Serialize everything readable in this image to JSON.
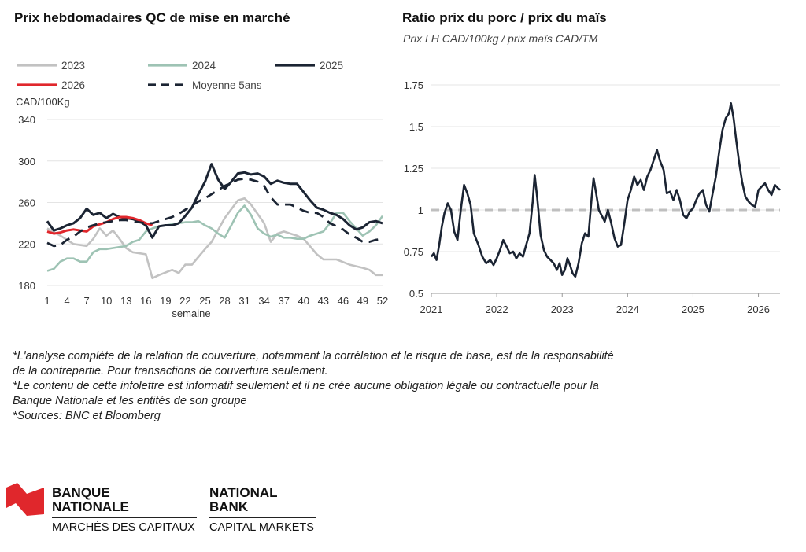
{
  "chart_data": [
    {
      "type": "line",
      "title": "Prix hebdomadaires QC de mise en marché",
      "ylabel": "CAD/100Kg",
      "xlabel": "semaine",
      "ylim": [
        180,
        340
      ],
      "yticks": [
        180,
        220,
        260,
        300,
        340
      ],
      "xlim": [
        1,
        52
      ],
      "xticks": [
        1,
        4,
        7,
        10,
        13,
        16,
        19,
        22,
        25,
        28,
        31,
        34,
        37,
        40,
        43,
        46,
        49,
        52
      ],
      "grid": true,
      "legend_position": "top",
      "series": [
        {
          "name": "2023",
          "color": "#c2c2c2",
          "dash": "solid",
          "x": [
            1,
            3,
            5,
            7,
            8,
            9,
            10,
            11,
            12,
            13,
            14,
            16,
            17,
            18,
            20,
            21,
            22,
            23,
            25,
            26,
            28,
            30,
            31,
            32,
            34,
            35,
            36,
            37,
            38,
            39,
            40,
            42,
            43,
            44,
            45,
            47,
            49,
            50,
            51,
            52
          ],
          "y": [
            235,
            228,
            220,
            218,
            225,
            235,
            228,
            233,
            225,
            216,
            212,
            210,
            187,
            190,
            195,
            192,
            200,
            200,
            215,
            222,
            245,
            262,
            264,
            258,
            240,
            222,
            230,
            232,
            230,
            228,
            225,
            210,
            205,
            205,
            205,
            200,
            197,
            195,
            190,
            190
          ]
        },
        {
          "name": "2024",
          "color": "#9ec3b4",
          "dash": "solid",
          "x": [
            1,
            2,
            3,
            4,
            5,
            6,
            7,
            8,
            9,
            10,
            11,
            12,
            13,
            14,
            15,
            16,
            17,
            18,
            19,
            20,
            21,
            22,
            23,
            24,
            25,
            26,
            27,
            28,
            29,
            30,
            31,
            32,
            33,
            34,
            35,
            36,
            37,
            38,
            39,
            40,
            41,
            42,
            43,
            44,
            45,
            46,
            47,
            48,
            49,
            50,
            51,
            52
          ],
          "y": [
            194,
            196,
            203,
            206,
            206,
            203,
            203,
            212,
            215,
            215,
            216,
            217,
            218,
            222,
            224,
            232,
            235,
            237,
            238,
            239,
            240,
            241,
            241,
            242,
            238,
            235,
            230,
            226,
            238,
            250,
            257,
            248,
            235,
            230,
            227,
            229,
            226,
            226,
            225,
            225,
            228,
            230,
            232,
            240,
            250,
            250,
            242,
            235,
            228,
            232,
            238,
            247
          ]
        },
        {
          "name": "2025",
          "color": "#1b2433",
          "dash": "solid",
          "x": [
            1,
            2,
            3,
            4,
            5,
            6,
            7,
            8,
            9,
            10,
            11,
            12,
            13,
            14,
            15,
            16,
            17,
            18,
            19,
            20,
            21,
            22,
            23,
            24,
            25,
            26,
            27,
            28,
            29,
            30,
            31,
            32,
            33,
            34,
            35,
            36,
            37,
            38,
            39,
            40,
            41,
            42,
            43,
            44,
            45,
            46,
            47,
            48,
            49,
            50,
            51,
            52
          ],
          "y": [
            242,
            233,
            235,
            238,
            240,
            245,
            254,
            248,
            250,
            245,
            249,
            246,
            245,
            244,
            242,
            238,
            226,
            237,
            238,
            238,
            240,
            247,
            255,
            268,
            280,
            297,
            282,
            273,
            280,
            288,
            289,
            287,
            288,
            285,
            278,
            281,
            279,
            278,
            278,
            270,
            262,
            255,
            253,
            250,
            248,
            244,
            238,
            234,
            236,
            241,
            242,
            240
          ]
        },
        {
          "name": "2026",
          "color": "#e0272c",
          "dash": "solid",
          "x": [
            1,
            2,
            3,
            4,
            5,
            6,
            7,
            8,
            9,
            10,
            11,
            12,
            13,
            14,
            15,
            16,
            17
          ],
          "y": [
            232,
            230,
            231,
            233,
            234,
            233,
            232,
            237,
            239,
            241,
            244,
            246,
            246,
            245,
            243,
            240,
            238
          ]
        },
        {
          "name": "Moyenne 5ans",
          "color": "#1b2433",
          "dash": "dashed",
          "x": [
            1,
            2,
            3,
            4,
            5,
            6,
            7,
            8,
            9,
            10,
            11,
            12,
            13,
            14,
            15,
            16,
            17,
            18,
            19,
            20,
            21,
            22,
            23,
            24,
            25,
            26,
            27,
            28,
            29,
            30,
            31,
            32,
            33,
            34,
            35,
            36,
            37,
            38,
            39,
            40,
            41,
            42,
            43,
            44,
            45,
            46,
            47,
            48,
            49,
            50,
            51,
            52
          ],
          "y": [
            221,
            218,
            219,
            224,
            227,
            232,
            236,
            238,
            240,
            241,
            242,
            243,
            243,
            242,
            241,
            240,
            240,
            242,
            244,
            246,
            249,
            253,
            257,
            261,
            264,
            268,
            272,
            276,
            279,
            282,
            283,
            282,
            280,
            276,
            265,
            258,
            258,
            258,
            255,
            252,
            250,
            250,
            246,
            240,
            237,
            234,
            229,
            226,
            222,
            222,
            224,
            225
          ]
        }
      ]
    },
    {
      "type": "line",
      "title": "Ratio prix du porc / prix du maïs",
      "subtitle": "Prix LH CAD/100kg / prix maïs CAD/TM",
      "ylim": [
        0.5,
        1.75
      ],
      "yticks": [
        "0.5",
        "0.75",
        "1",
        "1.25",
        "1.5",
        "1.75"
      ],
      "xlim": [
        2021,
        2026.33
      ],
      "xticks": [
        "2021",
        "2022",
        "2023",
        "2024",
        "2025",
        "2026"
      ],
      "grid": true,
      "reference_line": {
        "y": 1,
        "color": "#bfbfbf",
        "dash": "dashed"
      },
      "series": [
        {
          "color": "#1b2433",
          "x": [
            2021.0,
            2021.04,
            2021.08,
            2021.12,
            2021.16,
            2021.2,
            2021.25,
            2021.3,
            2021.35,
            2021.4,
            2021.45,
            2021.5,
            2021.55,
            2021.6,
            2021.65,
            2021.72,
            2021.78,
            2021.84,
            2021.9,
            2021.95,
            2022.0,
            2022.05,
            2022.1,
            2022.15,
            2022.2,
            2022.25,
            2022.3,
            2022.35,
            2022.4,
            2022.45,
            2022.5,
            2022.55,
            2022.58,
            2022.62,
            2022.67,
            2022.72,
            2022.77,
            2022.82,
            2022.87,
            2022.92,
            2022.96,
            2023.0,
            2023.04,
            2023.08,
            2023.12,
            2023.16,
            2023.2,
            2023.25,
            2023.3,
            2023.35,
            2023.4,
            2023.45,
            2023.48,
            2023.52,
            2023.56,
            2023.6,
            2023.65,
            2023.7,
            2023.75,
            2023.8,
            2023.85,
            2023.9,
            2023.95,
            2024.0,
            2024.05,
            2024.1,
            2024.15,
            2024.2,
            2024.25,
            2024.3,
            2024.35,
            2024.4,
            2024.45,
            2024.5,
            2024.55,
            2024.6,
            2024.65,
            2024.7,
            2024.75,
            2024.8,
            2024.85,
            2024.9,
            2024.95,
            2025.0,
            2025.05,
            2025.1,
            2025.15,
            2025.2,
            2025.25,
            2025.3,
            2025.35,
            2025.4,
            2025.45,
            2025.5,
            2025.55,
            2025.58,
            2025.62,
            2025.66,
            2025.7,
            2025.75,
            2025.8,
            2025.85,
            2025.9,
            2025.95,
            2026.0,
            2026.05,
            2026.1,
            2026.15,
            2026.2,
            2026.25,
            2026.3,
            2026.33
          ],
          "y": [
            0.72,
            0.74,
            0.7,
            0.79,
            0.9,
            0.98,
            1.04,
            1.0,
            0.87,
            0.82,
            1.0,
            1.15,
            1.1,
            1.03,
            0.86,
            0.79,
            0.72,
            0.68,
            0.7,
            0.67,
            0.71,
            0.76,
            0.82,
            0.78,
            0.74,
            0.75,
            0.71,
            0.74,
            0.72,
            0.79,
            0.86,
            1.05,
            1.21,
            1.07,
            0.85,
            0.76,
            0.72,
            0.7,
            0.68,
            0.64,
            0.68,
            0.61,
            0.64,
            0.71,
            0.67,
            0.62,
            0.6,
            0.68,
            0.8,
            0.86,
            0.84,
            1.07,
            1.19,
            1.1,
            1.0,
            0.97,
            0.93,
            1.0,
            0.92,
            0.83,
            0.78,
            0.79,
            0.92,
            1.06,
            1.12,
            1.2,
            1.15,
            1.18,
            1.12,
            1.2,
            1.24,
            1.3,
            1.36,
            1.29,
            1.24,
            1.1,
            1.11,
            1.06,
            1.12,
            1.06,
            0.97,
            0.95,
            0.99,
            1.01,
            1.06,
            1.1,
            1.12,
            1.03,
            0.99,
            1.1,
            1.2,
            1.35,
            1.48,
            1.55,
            1.58,
            1.64,
            1.55,
            1.42,
            1.3,
            1.17,
            1.08,
            1.05,
            1.03,
            1.02,
            1.12,
            1.14,
            1.16,
            1.12,
            1.09,
            1.15,
            1.13,
            1.12
          ]
        }
      ]
    }
  ],
  "notes": [
    "*L'analyse complète de la relation de couverture, notamment la corrélation et le risque de base, est de la responsabilité",
    "de la contrepartie. Pour transactions de couverture seulement.",
    "*Le contenu de cette infolettre est informatif seulement et il ne crée aucune obligation légale ou contractuelle pour la",
    "Banque Nationale et les entités de son groupe",
    "*Sources: BNC et Bloomberg"
  ],
  "brand": {
    "fr_line1": "BANQUE",
    "fr_line2": "NATIONALE",
    "fr_sub": "MARCHÉS DES CAPITAUX",
    "en_line1": "NATIONAL",
    "en_line2": "BANK",
    "en_sub": "CAPITAL MARKETS",
    "logo_color": "#e0272c"
  }
}
